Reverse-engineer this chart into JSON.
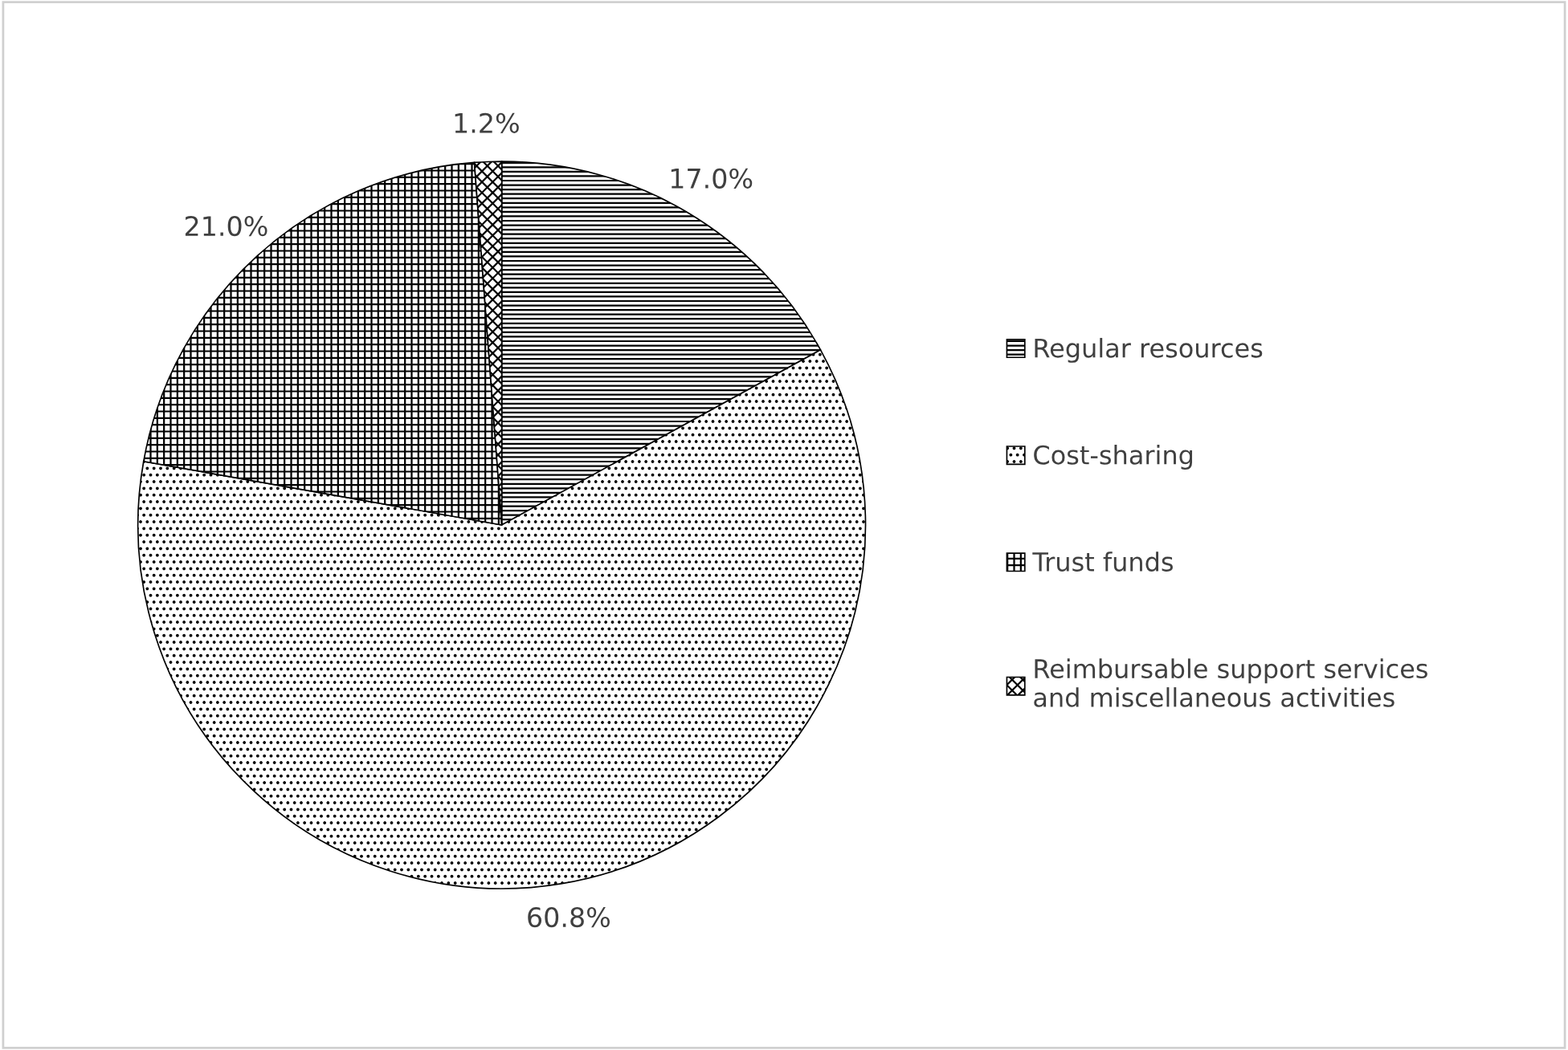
{
  "chart_data": {
    "type": "pie",
    "categories": [
      "Regular resources",
      "Cost-sharing",
      "Trust funds",
      "Reimbursable support services\nand miscellaneous activities"
    ],
    "values": [
      17.0,
      60.8,
      21.0,
      1.2
    ],
    "colors": [
      "#000000",
      "#000000",
      "#000000",
      "#000000"
    ],
    "value_labels": [
      "17.0%",
      "60.8%",
      "21.0%",
      "1.2%"
    ],
    "legend": "right"
  }
}
